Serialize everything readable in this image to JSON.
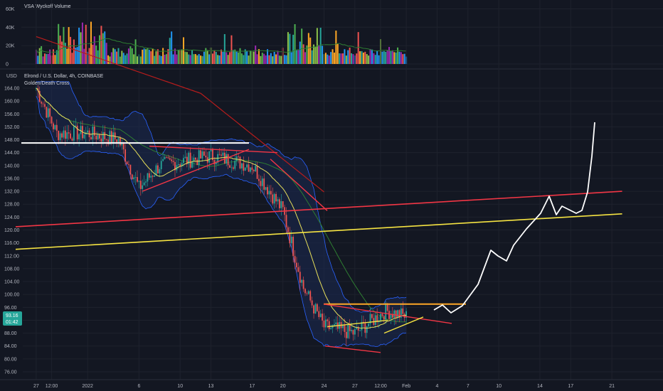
{
  "colors": {
    "background": "#131722",
    "grid": "#1e222d",
    "text": "#b2b5be",
    "up": "#26a69a",
    "down": "#ef5350",
    "ma_yellow": "#e8e05b",
    "ma_green": "#2e7d32",
    "ma_red": "#b71c1c",
    "bb_band": "#2962ff",
    "bb_fill": "#1c2a52",
    "trend_red": "#f23645",
    "trend_yellow": "#f5e342",
    "orange": "#ffa726",
    "pink": "#ff6b6b",
    "white": "#ffffff",
    "badge": "#26a69a"
  },
  "volume_panel": {
    "title": "VSA Wyckoff Volume",
    "ticks": [
      "60K",
      "40K",
      "20K",
      "0"
    ]
  },
  "price_panel": {
    "currency": "USD",
    "symbol_label": "Elrond / U.S. Dollar, 4h, COINBASE",
    "indicator_label": "Golden/Death Cross",
    "y_ticks": [
      "164.00",
      "160.00",
      "156.00",
      "152.00",
      "148.00",
      "144.00",
      "140.00",
      "136.00",
      "132.00",
      "128.00",
      "124.00",
      "120.00",
      "116.00",
      "112.00",
      "108.00",
      "104.00",
      "100.00",
      "96.00",
      "92.00",
      "88.00",
      "84.00",
      "80.00",
      "76.00"
    ],
    "last_price": "93.16",
    "countdown": "01:42"
  },
  "x_ticks": [
    "27",
    "12:00",
    "2022",
    "6",
    "10",
    "13",
    "17",
    "20",
    "24",
    "27",
    "12:00",
    "Feb",
    "4",
    "7",
    "10",
    "14",
    "17",
    "21"
  ],
  "chart_data": {
    "type": "candlestick",
    "symbol": "Elrond / U.S. Dollar",
    "interval": "4h",
    "exchange": "COINBASE",
    "currency": "USD",
    "ylim": [
      74,
      168
    ],
    "volume_ylim": [
      0,
      65000
    ],
    "approx_closes": [
      {
        "date": "Dec 27",
        "price": 164
      },
      {
        "date": "Dec 29",
        "price": 150
      },
      {
        "date": "Jan 1",
        "price": 150
      },
      {
        "date": "Jan 4",
        "price": 148
      },
      {
        "date": "Jan 6",
        "price": 133
      },
      {
        "date": "Jan 8",
        "price": 140
      },
      {
        "date": "Jan 13",
        "price": 143
      },
      {
        "date": "Jan 17",
        "price": 140
      },
      {
        "date": "Jan 20",
        "price": 126
      },
      {
        "date": "Jan 22",
        "price": 102
      },
      {
        "date": "Jan 24",
        "price": 90
      },
      {
        "date": "Jan 27",
        "price": 88
      },
      {
        "date": "Jan 30",
        "price": 95
      },
      {
        "date": "Feb 1",
        "price": 93.16
      }
    ],
    "annotations": [
      {
        "type": "horizontal",
        "color": "white",
        "price": 147
      },
      {
        "type": "horizontal",
        "color": "orange",
        "price": 97
      },
      {
        "type": "trendline",
        "color": "red",
        "from": {
          "date": "Dec 25",
          "price": 121
        },
        "to": {
          "date": "Feb 22",
          "price": 132
        }
      },
      {
        "type": "trendline",
        "color": "yellow",
        "from": {
          "date": "Dec 25",
          "price": 114
        },
        "to": {
          "date": "Feb 22",
          "price": 125
        }
      },
      {
        "type": "projection",
        "color": "white",
        "from": {
          "date": "Feb 2",
          "price": 93
        },
        "to": {
          "date": "Feb 16",
          "price": 154
        }
      }
    ]
  }
}
